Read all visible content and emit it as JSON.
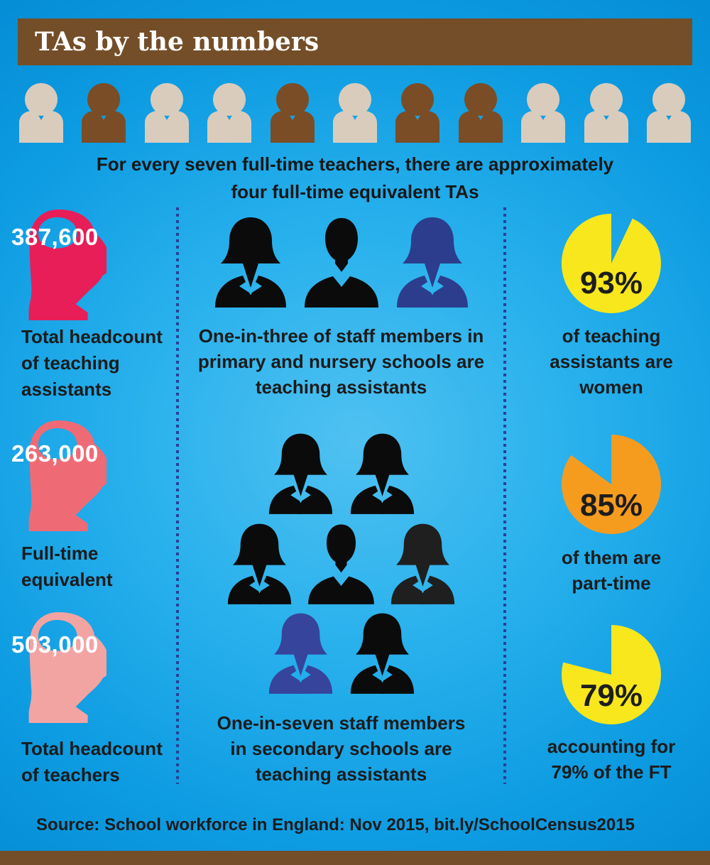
{
  "header": {
    "title": "TAs by the numbers",
    "bar_color": "#744e28",
    "text_color": "#ffffff"
  },
  "ratio_row": {
    "pattern": [
      "teacher",
      "ta",
      "teacher",
      "teacher",
      "ta",
      "teacher",
      "ta",
      "ta",
      "teacher",
      "teacher",
      "teacher"
    ],
    "colors": {
      "teacher": "#d9ccbd",
      "ta": "#7a4d26"
    },
    "caption_lines": [
      "For every seven full-time teachers, there are approximately",
      "four full-time equivalent TAs"
    ]
  },
  "left_column": {
    "stats": [
      {
        "value": "387,600",
        "label_lines": [
          "Total headcount",
          "of teaching",
          "assistants"
        ],
        "color": "#e71e57"
      },
      {
        "value": "263,000",
        "label_lines": [
          "Full-time",
          "equivalent"
        ],
        "color": "#ee6b76"
      },
      {
        "value": "503,000",
        "label_lines": [
          "Total headcount",
          "of teachers"
        ],
        "color": "#f2a4a3"
      }
    ]
  },
  "middle_column": {
    "primary": {
      "figures": [
        {
          "type": "female",
          "color": "#0b0b0b"
        },
        {
          "type": "male",
          "color": "#0b0b0b"
        },
        {
          "type": "female",
          "color": "#2b3d8c"
        }
      ],
      "caption_lines": [
        "One-in-three of staff members in",
        "primary and nursery schools are",
        "teaching assistants"
      ]
    },
    "secondary": {
      "rows": [
        [
          {
            "type": "female",
            "color": "#0b0b0b"
          },
          {
            "type": "female",
            "color": "#0b0b0b"
          }
        ],
        [
          {
            "type": "female",
            "color": "#0b0b0b"
          },
          {
            "type": "male",
            "color": "#0b0b0b"
          },
          {
            "type": "female",
            "color": "#1f1f1f"
          }
        ],
        [
          {
            "type": "female",
            "color": "#36449b"
          },
          {
            "type": "female",
            "color": "#0b0b0b"
          }
        ]
      ],
      "caption_lines": [
        "One-in-seven staff members",
        "in secondary schools are",
        "teaching assistants"
      ]
    }
  },
  "right_column": {
    "pies": [
      {
        "percent": 93,
        "label": "93%",
        "color": "#f8e71c",
        "notch": "right",
        "caption_lines": [
          "of teaching",
          "assistants are",
          "women"
        ]
      },
      {
        "percent": 85,
        "label": "85%",
        "color": "#f59c1f",
        "notch": "left",
        "caption_lines": [
          "of them are",
          "part-time"
        ]
      },
      {
        "percent": 79,
        "label": "79%",
        "color": "#f8e71c",
        "notch": "left",
        "caption_lines": [
          "accounting for",
          "79% of the FT"
        ]
      }
    ]
  },
  "footer": {
    "source": "Source: School workforce in England: Nov 2015, bit.ly/SchoolCensus2015"
  },
  "palette": {
    "background_blue": "#1aa6e8",
    "divider_dots": "#2b3f96",
    "dark_text": "#1b1b1b"
  },
  "chart_data": [
    {
      "type": "table",
      "title": "TAs by the numbers",
      "categories": [
        "Total headcount of teaching assistants",
        "Full-time equivalent",
        "Total headcount of teachers"
      ],
      "values": [
        387600,
        263000,
        503000
      ]
    },
    {
      "type": "table",
      "title": "Teacher to TA ratio pictogram",
      "categories": [
        "Full-time teachers",
        "Full-time equivalent TAs"
      ],
      "values": [
        7,
        4
      ],
      "annotation": "For every seven full-time teachers, there are approximately four full-time equivalent TAs"
    },
    {
      "type": "pie",
      "title": "TAs share of staff",
      "categories": [
        "Primary and nursery schools",
        "Secondary schools"
      ],
      "values": [
        33.3,
        14.3
      ],
      "annotation": "One-in-three primary/nursery staff, one-in-seven secondary staff are TAs"
    },
    {
      "type": "pie",
      "title": "of teaching assistants are women",
      "categories": [
        "women",
        "other"
      ],
      "values": [
        93,
        7
      ]
    },
    {
      "type": "pie",
      "title": "of them are part-time",
      "categories": [
        "part-time",
        "other"
      ],
      "values": [
        85,
        15
      ]
    },
    {
      "type": "pie",
      "title": "accounting for 79% of the FT",
      "categories": [
        "FT share",
        "other"
      ],
      "values": [
        79,
        21
      ]
    }
  ]
}
